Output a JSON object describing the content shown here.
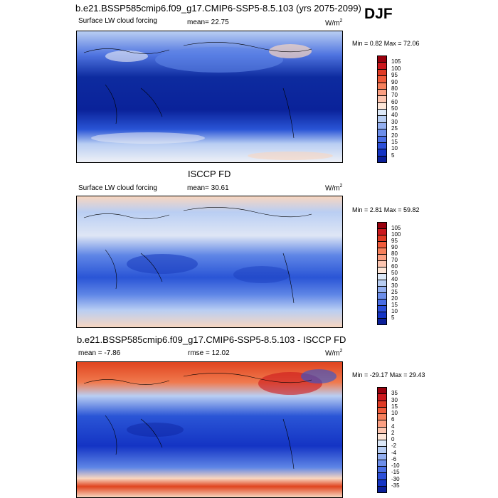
{
  "header": {
    "title": "b.e21.BSSP585cmip6.f09_g17.CMIP6-SSP5-8.5.103 (yrs 2075-2099)",
    "season": "DJF"
  },
  "panels": [
    {
      "name": "model",
      "variable": "Surface LW cloud forcing",
      "stat": "mean=  22.75",
      "units": "W/m",
      "units_sup": "2",
      "minmax": "Min =   0.82 Max =  72.06",
      "colorbar": {
        "labels": [
          "105",
          "100",
          "95",
          "90",
          "80",
          "70",
          "60",
          "50",
          "40",
          "30",
          "25",
          "20",
          "15",
          "10",
          "5"
        ],
        "colors": [
          "#99000d",
          "#cb181d",
          "#e03a24",
          "#ef5a3a",
          "#f57f5b",
          "#fb9f82",
          "#fcc5b0",
          "#fde6d8",
          "#dce8f7",
          "#b7cdf2",
          "#93aff0",
          "#6c8eea",
          "#4a6ee4",
          "#2c4fd8",
          "#1434c4",
          "#0b1f99"
        ]
      }
    },
    {
      "name": "obs",
      "title": "ISCCP FD",
      "variable": "Surface LW cloud forcing",
      "stat": "mean=  30.61",
      "units": "W/m",
      "units_sup": "2",
      "minmax": "Min =   2.81 Max =  59.82",
      "colorbar": {
        "labels": [
          "105",
          "100",
          "95",
          "90",
          "80",
          "70",
          "60",
          "50",
          "40",
          "30",
          "25",
          "20",
          "15",
          "10",
          "5"
        ],
        "colors": [
          "#99000d",
          "#cb181d",
          "#e03a24",
          "#ef5a3a",
          "#f57f5b",
          "#fb9f82",
          "#fcc5b0",
          "#fde6d8",
          "#dce8f7",
          "#b7cdf2",
          "#93aff0",
          "#6c8eea",
          "#4a6ee4",
          "#2c4fd8",
          "#1434c4",
          "#0b1f99"
        ]
      }
    },
    {
      "name": "diff",
      "title": "b.e21.BSSP585cmip6.f09_g17.CMIP6-SSP5-8.5.103 - ISCCP FD",
      "stat": "mean =  -7.86",
      "stat2": "rmse =  12.02",
      "units": "W/m",
      "units_sup": "2",
      "minmax": "Min = -29.17 Max =  29.43",
      "colorbar": {
        "labels": [
          "35",
          "30",
          "15",
          "10",
          "6",
          "4",
          "2",
          "0",
          "-2",
          "-4",
          "-6",
          "-10",
          "-15",
          "-30",
          "-35"
        ],
        "colors": [
          "#99000d",
          "#cb181d",
          "#e03a24",
          "#ef5a3a",
          "#f57f5b",
          "#fb9f82",
          "#fcc5b0",
          "#fde6d8",
          "#dce8f7",
          "#b7cdf2",
          "#93aff0",
          "#6c8eea",
          "#4a6ee4",
          "#2c4fd8",
          "#1434c4",
          "#0b1f99"
        ]
      }
    }
  ],
  "colors": {
    "deep_blue": "#0b2aa8",
    "blue": "#2a55d6",
    "mid_blue": "#5f86e6",
    "light_blue": "#b9cef3",
    "pale": "#eef0f6",
    "peach": "#f8d6c0",
    "orange": "#f07a4e",
    "red": "#e0441f"
  }
}
